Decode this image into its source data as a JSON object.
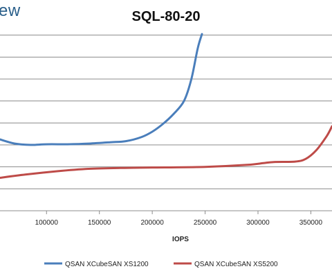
{
  "logo": {
    "text": "ew"
  },
  "chart_data": {
    "type": "line",
    "title": "SQL-80-20",
    "xlabel": "IOPS",
    "ylabel": "",
    "xlim": [
      56000,
      370000
    ],
    "ylim": [
      0,
      9
    ],
    "x_ticks": [
      100000,
      150000,
      200000,
      250000,
      300000,
      350000
    ],
    "x_tick_labels": [
      "100000",
      "150000",
      "200000",
      "250000",
      "300000",
      "350000"
    ],
    "y_ticks": [
      1,
      2,
      3,
      4,
      5,
      6,
      7,
      8
    ],
    "grid": true,
    "legend_position": "bottom",
    "series": [
      {
        "name": "QSAN XCubeSAN XS1200",
        "color": "#4a7ebb",
        "points": [
          [
            56000,
            3.25
          ],
          [
            70000,
            3.06
          ],
          [
            85000,
            3.0
          ],
          [
            100000,
            3.03
          ],
          [
            120000,
            3.03
          ],
          [
            140000,
            3.06
          ],
          [
            160000,
            3.12
          ],
          [
            175000,
            3.17
          ],
          [
            190000,
            3.36
          ],
          [
            200000,
            3.6
          ],
          [
            210000,
            3.95
          ],
          [
            220000,
            4.4
          ],
          [
            230000,
            5.0
          ],
          [
            237000,
            6.0
          ],
          [
            243000,
            7.4
          ],
          [
            247000,
            8.05
          ]
        ]
      },
      {
        "name": "QSAN XCubeSAN XS5200",
        "color": "#be4b48",
        "points": [
          [
            56000,
            1.5
          ],
          [
            80000,
            1.65
          ],
          [
            110000,
            1.8
          ],
          [
            140000,
            1.91
          ],
          [
            170000,
            1.95
          ],
          [
            200000,
            1.97
          ],
          [
            250000,
            2.0
          ],
          [
            290000,
            2.09
          ],
          [
            305000,
            2.17
          ],
          [
            315000,
            2.22
          ],
          [
            335000,
            2.24
          ],
          [
            345000,
            2.36
          ],
          [
            355000,
            2.75
          ],
          [
            365000,
            3.4
          ],
          [
            370000,
            3.85
          ]
        ]
      }
    ]
  }
}
